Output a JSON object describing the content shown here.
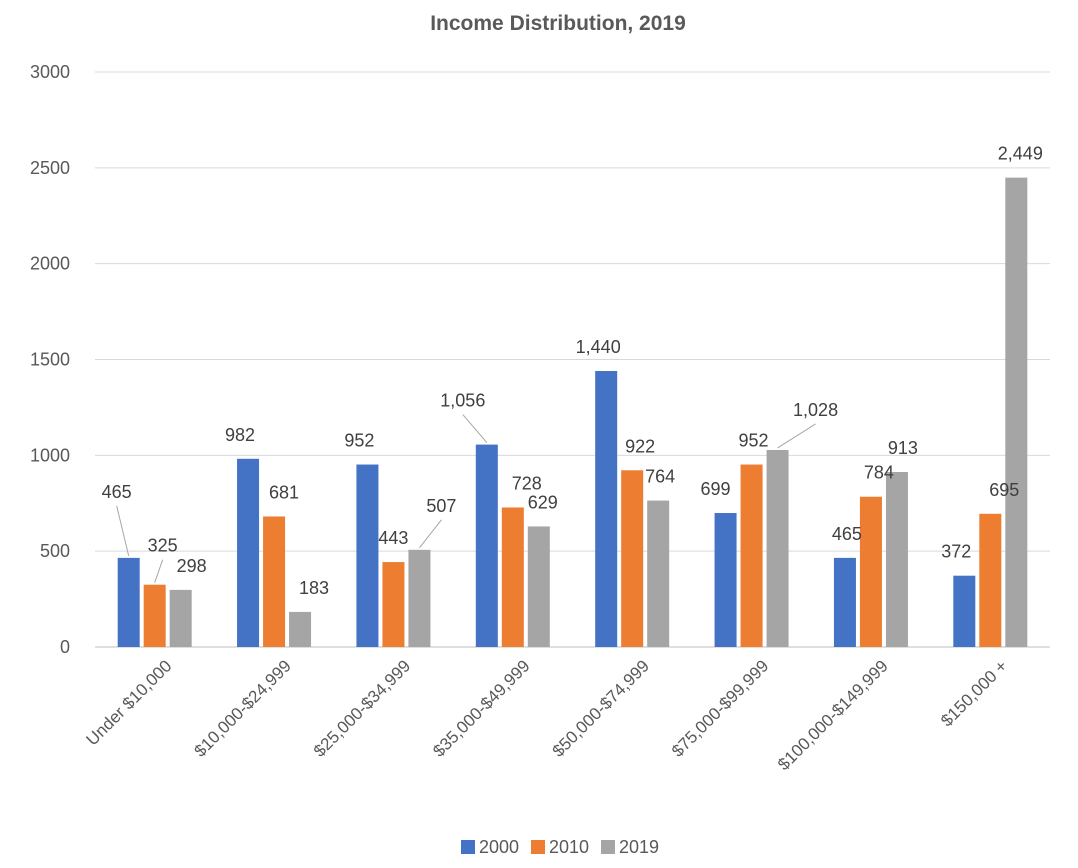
{
  "chart_data": {
    "type": "bar",
    "title": "Income Distribution, 2019",
    "xlabel": "",
    "ylabel": "",
    "ylim": [
      0,
      3000
    ],
    "yticks": [
      0,
      500,
      1000,
      1500,
      2000,
      2500,
      3000
    ],
    "grid": true,
    "legend_position": "bottom",
    "categories": [
      "Under $10,000",
      "$10,000-$24,999",
      "$25,000-$34,999",
      "$35,000-$49,999",
      "$50,000-$74,999",
      "$75,000-$99,999",
      "$100,000-$149,999",
      "$150,000 +"
    ],
    "series": [
      {
        "name": "2000",
        "color": "#4472c4",
        "values": [
          465,
          982,
          952,
          1056,
          1440,
          699,
          465,
          372
        ],
        "labels": [
          "465",
          "982",
          "952",
          "1,056",
          "1,440",
          "699",
          "465",
          "372"
        ]
      },
      {
        "name": "2010",
        "color": "#ed7d31",
        "values": [
          325,
          681,
          443,
          728,
          922,
          952,
          784,
          695
        ],
        "labels": [
          "325",
          "681",
          "443",
          "728",
          "922",
          "952",
          "784",
          "695"
        ]
      },
      {
        "name": "2019",
        "color": "#a5a5a5",
        "values": [
          298,
          183,
          507,
          629,
          764,
          1028,
          913,
          2449
        ],
        "labels": [
          "298",
          "183",
          "507",
          "629",
          "764",
          "1,028",
          "913",
          "2,449"
        ]
      }
    ]
  }
}
